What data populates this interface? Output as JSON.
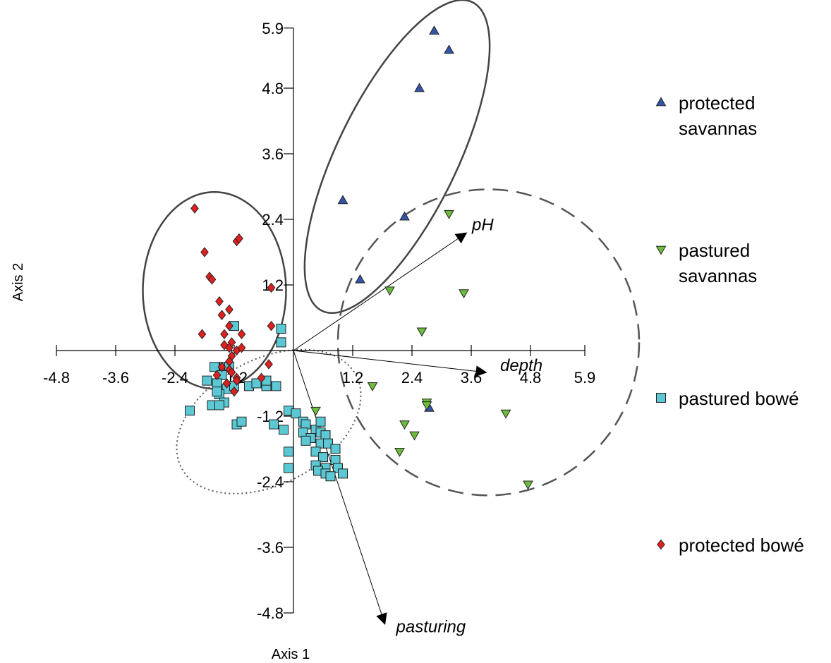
{
  "chart_data": {
    "type": "scatter",
    "title": "",
    "xlabel": "Axis 1",
    "ylabel": "Axis 2",
    "xlim": [
      -4.8,
      5.9
    ],
    "ylim": [
      -4.8,
      5.9
    ],
    "xticks": [
      "-4.8",
      "-3.6",
      "-2.4",
      "-1.2",
      "1.2",
      "2.4",
      "3.6",
      "4.8",
      "5.9"
    ],
    "xtick_values": [
      -4.8,
      -3.6,
      -2.4,
      -1.2,
      1.2,
      2.4,
      3.6,
      4.8,
      5.9
    ],
    "yticks": [
      "5.9",
      "4.8",
      "3.6",
      "2.4",
      "1.2",
      "-1.2",
      "-2.4",
      "-3.6",
      "-4.8"
    ],
    "ytick_values": [
      5.9,
      4.8,
      3.6,
      2.4,
      1.2,
      -1.2,
      -2.4,
      -3.6,
      -4.8
    ],
    "grid": false,
    "legend": "right",
    "series": [
      {
        "name": "protected savannas",
        "legend_lines": [
          "protected",
          "savannas"
        ],
        "marker": "triangle-up",
        "color": "#3355a8",
        "points": [
          [
            2.85,
            5.85
          ],
          [
            3.15,
            5.5
          ],
          [
            2.55,
            4.8
          ],
          [
            1.0,
            2.75
          ],
          [
            2.25,
            2.45
          ],
          [
            1.35,
            1.3
          ],
          [
            2.75,
            -1.05
          ]
        ]
      },
      {
        "name": "pastured savannas",
        "legend_lines": [
          "pastured",
          "savannas"
        ],
        "marker": "triangle-down",
        "color": "#6cbd3c",
        "points": [
          [
            3.15,
            2.5
          ],
          [
            1.95,
            1.1
          ],
          [
            3.45,
            1.05
          ],
          [
            2.6,
            0.35
          ],
          [
            1.6,
            -0.65
          ],
          [
            2.7,
            -0.95
          ],
          [
            2.7,
            -1.0
          ],
          [
            0.45,
            -1.1
          ],
          [
            4.3,
            -1.15
          ],
          [
            2.25,
            -1.35
          ],
          [
            2.45,
            -1.55
          ],
          [
            2.15,
            -1.85
          ],
          [
            4.75,
            -2.45
          ]
        ]
      },
      {
        "name": "pastured bowé",
        "legend_lines": [
          "pastured bowé"
        ],
        "marker": "square",
        "color": "#5bc8d4",
        "points": [
          [
            -1.2,
            0.45
          ],
          [
            -0.25,
            0.4
          ],
          [
            -0.25,
            0.15
          ],
          [
            -1.6,
            -0.3
          ],
          [
            -1.4,
            -0.3
          ],
          [
            -1.3,
            -0.3
          ],
          [
            -1.45,
            -0.45
          ],
          [
            -1.75,
            -0.55
          ],
          [
            -1.55,
            -0.6
          ],
          [
            -1.35,
            -0.7
          ],
          [
            -1.2,
            -0.65
          ],
          [
            -0.9,
            -0.65
          ],
          [
            -0.75,
            -0.6
          ],
          [
            -0.55,
            -0.65
          ],
          [
            -0.55,
            -0.55
          ],
          [
            -0.35,
            -0.65
          ],
          [
            -1.5,
            -0.8
          ],
          [
            -1.4,
            -0.95
          ],
          [
            -1.65,
            -1.0
          ],
          [
            -1.5,
            -1.0
          ],
          [
            -1.55,
            -0.75
          ],
          [
            -0.1,
            -1.1
          ],
          [
            0.05,
            -1.15
          ],
          [
            0.2,
            -1.3
          ],
          [
            -2.1,
            -1.1
          ],
          [
            -1.15,
            -1.35
          ],
          [
            -1.05,
            -1.3
          ],
          [
            -0.4,
            -1.35
          ],
          [
            -0.2,
            -1.45
          ],
          [
            0.25,
            -1.35
          ],
          [
            0.2,
            -1.5
          ],
          [
            0.45,
            -1.45
          ],
          [
            0.55,
            -1.3
          ],
          [
            0.55,
            -1.5
          ],
          [
            0.65,
            -1.55
          ],
          [
            0.35,
            -1.6
          ],
          [
            0.25,
            -1.65
          ],
          [
            0.55,
            -1.7
          ],
          [
            0.7,
            -1.7
          ],
          [
            0.85,
            -1.8
          ],
          [
            0.45,
            -1.85
          ],
          [
            0.6,
            -1.95
          ],
          [
            0.45,
            -2.1
          ],
          [
            0.85,
            -2.0
          ],
          [
            -0.1,
            -1.85
          ],
          [
            -0.1,
            -2.15
          ],
          [
            0.65,
            -2.15
          ],
          [
            0.9,
            -2.15
          ],
          [
            0.5,
            -2.2
          ],
          [
            0.65,
            -2.25
          ],
          [
            1.0,
            -2.25
          ],
          [
            0.75,
            -2.3
          ]
        ]
      },
      {
        "name": "protected bowé",
        "legend_lines": [
          "protected bowé"
        ],
        "marker": "diamond",
        "color": "#e02020",
        "points": [
          [
            -2.0,
            2.6
          ],
          [
            -1.15,
            2.0
          ],
          [
            -1.1,
            2.05
          ],
          [
            -1.8,
            1.8
          ],
          [
            -1.7,
            1.35
          ],
          [
            -1.65,
            1.3
          ],
          [
            -0.45,
            1.15
          ],
          [
            -1.5,
            0.9
          ],
          [
            -1.3,
            0.75
          ],
          [
            -1.45,
            0.65
          ],
          [
            -1.3,
            0.45
          ],
          [
            -0.45,
            0.45
          ],
          [
            -1.85,
            0.3
          ],
          [
            -1.4,
            0.3
          ],
          [
            -1.25,
            0.15
          ],
          [
            -1.3,
            0.05
          ],
          [
            -1.05,
            0.3
          ],
          [
            -1.15,
            0.0
          ],
          [
            -1.05,
            0.05
          ],
          [
            -1.4,
            0.1
          ],
          [
            -1.25,
            -0.1
          ],
          [
            -1.3,
            -0.2
          ],
          [
            -1.45,
            -0.3
          ],
          [
            -1.3,
            -0.35
          ],
          [
            -1.25,
            -0.4
          ],
          [
            -1.15,
            -0.5
          ],
          [
            -1.55,
            -0.45
          ],
          [
            -1.15,
            -0.55
          ],
          [
            -1.35,
            -0.6
          ],
          [
            -1.2,
            -0.75
          ],
          [
            -0.5,
            -0.25
          ],
          [
            -0.65,
            -0.5
          ]
        ]
      }
    ],
    "vectors": [
      {
        "name": "pH",
        "x": 3.5,
        "y": 2.15
      },
      {
        "name": "depth",
        "x": 3.9,
        "y": -0.4
      },
      {
        "name": "pasturing",
        "x": 1.85,
        "y": -5.0
      }
    ],
    "ellipses": [
      {
        "group": "protected savannas",
        "style": "solid",
        "cx": 2.1,
        "cy": 3.55,
        "rx": 3.3,
        "ry": 1.15,
        "angle_deg": -64
      },
      {
        "group": "protected bowé",
        "style": "solid",
        "cx": -1.6,
        "cy": 1.1,
        "rx": 1.45,
        "ry": 1.8,
        "angle_deg": 0
      },
      {
        "group": "pastured bowé",
        "style": "dotted",
        "cx": -0.5,
        "cy": -1.3,
        "rx": 1.9,
        "ry": 1.2,
        "angle_deg": -28
      },
      {
        "group": "pastured savannas",
        "style": "dashed",
        "cx": 3.95,
        "cy": 0.15,
        "rx": 3.05,
        "ry": 2.8,
        "angle_deg": 0
      }
    ]
  }
}
